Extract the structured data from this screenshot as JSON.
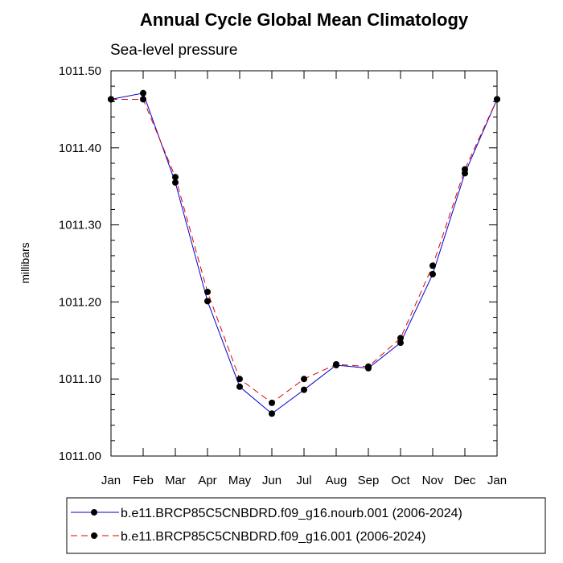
{
  "chart_data": {
    "type": "line",
    "title": "Annual Cycle Global Mean Climatology",
    "subtitle": "Sea-level pressure",
    "ylabel": "millibars",
    "xlabel": "",
    "categories": [
      "Jan",
      "Feb",
      "Mar",
      "Apr",
      "May",
      "Jun",
      "Jul",
      "Aug",
      "Sep",
      "Oct",
      "Nov",
      "Dec",
      "Jan"
    ],
    "ylim": [
      1011.0,
      1011.5
    ],
    "yticks": [
      1011.0,
      1011.1,
      1011.2,
      1011.3,
      1011.4,
      1011.5
    ],
    "ytick_labels": [
      "1011.00",
      "1011.10",
      "1011.20",
      "1011.30",
      "1011.40",
      "1011.50"
    ],
    "series": [
      {
        "name": "b.e11.BRCP85C5CNBDRD.f09_g16.nourb.001 (2006-2024)",
        "color": "#0000cc",
        "dash": "solid",
        "values": [
          1011.463,
          1011.471,
          1011.355,
          1011.201,
          1011.09,
          1011.055,
          1011.086,
          1011.118,
          1011.114,
          1011.147,
          1011.236,
          1011.367,
          1011.463
        ]
      },
      {
        "name": "b.e11.BRCP85C5CNBDRD.f09_g16.001 (2006-2024)",
        "color": "#e00000",
        "dash": "dashed",
        "values": [
          1011.463,
          1011.463,
          1011.362,
          1011.213,
          1011.1,
          1011.069,
          1011.1,
          1011.119,
          1011.116,
          1011.153,
          1011.247,
          1011.372,
          1011.463
        ]
      }
    ],
    "legend_position": "bottom"
  }
}
